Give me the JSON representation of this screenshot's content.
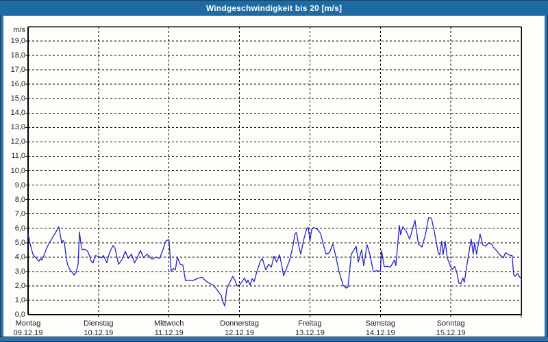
{
  "window": {
    "title": "Windgeschwindigkeit bis 20 [m/s]"
  },
  "colors": {
    "titlebar": "#1e6ba3",
    "titlebar_edge": "#15476f",
    "frame": "#2d74ad",
    "frame_edge": "#13395f",
    "title_text": "#ffffff",
    "plot_background": "#fdfdfa",
    "plot_border": "#000000",
    "gridline": "#000000",
    "line": "#2323c6",
    "label_text": "#1a1a24"
  },
  "chart_data": {
    "type": "line",
    "title": "Windgeschwindigkeit bis 20 [m/s]",
    "y_unit_label": "m/s",
    "ylabel": "Windgeschwindigkeit",
    "xlabel": "",
    "ylim": [
      0,
      20
    ],
    "ytick_step": 1.0,
    "ytick_labels": [
      "0,0",
      "1,0",
      "2,0",
      "3,0",
      "4,0",
      "5,0",
      "6,0",
      "7,0",
      "8,0",
      "9,0",
      "10,0",
      "11,0",
      "12,0",
      "13,0",
      "14,0",
      "15,0",
      "16,0",
      "17,0",
      "18,0",
      "19,0"
    ],
    "grid": "dashed, horizontal every 1 m/s and vertical at each day boundary",
    "legend_position": "none",
    "x_range_days": 7,
    "x_days": [
      {
        "name": "Montag",
        "date": "09.12.19"
      },
      {
        "name": "Dienstag",
        "date": "10.12.19"
      },
      {
        "name": "Mittwoch",
        "date": "11.12.19"
      },
      {
        "name": "Donnerstag",
        "date": "12.12.19"
      },
      {
        "name": "Freitag",
        "date": "13.12.19"
      },
      {
        "name": "Samstag",
        "date": "14.12.19"
      },
      {
        "name": "Sonntag",
        "date": "15.12.19"
      }
    ],
    "series": [
      {
        "name": "Windgeschwindigkeit",
        "unit": "m/s",
        "x_unit": "days since Montag 09.12.19 00:00",
        "points": [
          [
            0.0,
            5.6
          ],
          [
            0.03,
            4.9
          ],
          [
            0.068,
            4.2
          ],
          [
            0.1,
            4.0
          ],
          [
            0.136,
            3.8
          ],
          [
            0.155,
            3.7
          ],
          [
            0.175,
            3.9
          ],
          [
            0.195,
            3.8
          ],
          [
            0.225,
            4.1
          ],
          [
            0.262,
            4.6
          ],
          [
            0.292,
            4.9
          ],
          [
            0.34,
            5.3
          ],
          [
            0.39,
            5.7
          ],
          [
            0.437,
            6.1
          ],
          [
            0.455,
            5.6
          ],
          [
            0.476,
            5.0
          ],
          [
            0.495,
            5.15
          ],
          [
            0.515,
            5.0
          ],
          [
            0.545,
            3.8
          ],
          [
            0.56,
            3.5
          ],
          [
            0.583,
            3.2
          ],
          [
            0.615,
            3.0
          ],
          [
            0.632,
            2.9
          ],
          [
            0.651,
            2.75
          ],
          [
            0.68,
            2.9
          ],
          [
            0.71,
            3.5
          ],
          [
            0.729,
            5.75
          ],
          [
            0.751,
            4.9
          ],
          [
            0.768,
            4.5
          ],
          [
            0.8,
            4.55
          ],
          [
            0.846,
            4.4
          ],
          [
            0.87,
            4.1
          ],
          [
            0.894,
            3.7
          ],
          [
            0.923,
            3.6
          ],
          [
            0.952,
            4.1
          ],
          [
            1.0,
            4.05
          ],
          [
            1.04,
            3.95
          ],
          [
            1.07,
            4.1
          ],
          [
            1.118,
            3.6
          ],
          [
            1.155,
            4.3
          ],
          [
            1.205,
            4.8
          ],
          [
            1.235,
            4.6
          ],
          [
            1.283,
            3.5
          ],
          [
            1.33,
            3.8
          ],
          [
            1.38,
            4.4
          ],
          [
            1.42,
            3.9
          ],
          [
            1.468,
            4.2
          ],
          [
            1.51,
            3.6
          ],
          [
            1.545,
            3.9
          ],
          [
            1.594,
            4.45
          ],
          [
            1.64,
            3.95
          ],
          [
            1.69,
            4.2
          ],
          [
            1.76,
            3.85
          ],
          [
            1.818,
            4.0
          ],
          [
            1.866,
            3.9
          ],
          [
            1.914,
            4.5
          ],
          [
            1.945,
            5.0
          ],
          [
            1.964,
            5.15
          ],
          [
            2.0,
            5.2
          ],
          [
            2.03,
            3.0
          ],
          [
            2.06,
            3.2
          ],
          [
            2.09,
            3.1
          ],
          [
            2.118,
            4.0
          ],
          [
            2.158,
            3.5
          ],
          [
            2.195,
            3.45
          ],
          [
            2.235,
            2.35
          ],
          [
            2.285,
            2.4
          ],
          [
            2.33,
            2.35
          ],
          [
            2.38,
            2.45
          ],
          [
            2.43,
            2.55
          ],
          [
            2.47,
            2.6
          ],
          [
            2.52,
            2.35
          ],
          [
            2.565,
            2.2
          ],
          [
            2.625,
            2.05
          ],
          [
            2.664,
            1.85
          ],
          [
            2.692,
            1.65
          ],
          [
            2.74,
            1.35
          ],
          [
            2.77,
            0.85
          ],
          [
            2.79,
            0.6
          ],
          [
            2.82,
            1.8
          ],
          [
            2.858,
            2.2
          ],
          [
            2.905,
            2.65
          ],
          [
            2.935,
            2.4
          ],
          [
            2.965,
            2.0
          ],
          [
            3.0,
            2.05
          ],
          [
            3.038,
            2.3
          ],
          [
            3.072,
            2.55
          ],
          [
            3.101,
            2.2
          ],
          [
            3.121,
            2.4
          ],
          [
            3.15,
            2.05
          ],
          [
            3.179,
            2.5
          ],
          [
            3.208,
            2.3
          ],
          [
            3.247,
            3.0
          ],
          [
            3.296,
            3.7
          ],
          [
            3.325,
            3.9
          ],
          [
            3.374,
            3.1
          ],
          [
            3.413,
            3.5
          ],
          [
            3.452,
            3.3
          ],
          [
            3.49,
            4.05
          ],
          [
            3.529,
            3.65
          ],
          [
            3.568,
            4.15
          ],
          [
            3.597,
            3.5
          ],
          [
            3.626,
            2.7
          ],
          [
            3.675,
            3.3
          ],
          [
            3.713,
            3.8
          ],
          [
            3.752,
            4.6
          ],
          [
            3.791,
            5.65
          ],
          [
            3.81,
            5.7
          ],
          [
            3.84,
            4.8
          ],
          [
            3.869,
            4.2
          ],
          [
            3.917,
            5.3
          ],
          [
            3.956,
            6.0
          ],
          [
            3.976,
            6.05
          ],
          [
            4.0,
            5.1
          ],
          [
            4.025,
            5.9
          ],
          [
            4.053,
            6.05
          ],
          [
            4.102,
            5.95
          ],
          [
            4.15,
            5.65
          ],
          [
            4.189,
            4.9
          ],
          [
            4.228,
            4.2
          ],
          [
            4.277,
            4.3
          ],
          [
            4.325,
            4.9
          ],
          [
            4.374,
            3.9
          ],
          [
            4.413,
            3.0
          ],
          [
            4.471,
            2.05
          ],
          [
            4.51,
            1.85
          ],
          [
            4.539,
            1.9
          ],
          [
            4.588,
            4.2
          ],
          [
            4.626,
            4.5
          ],
          [
            4.656,
            4.75
          ],
          [
            4.686,
            3.65
          ],
          [
            4.734,
            4.5
          ],
          [
            4.763,
            3.4
          ],
          [
            4.812,
            4.85
          ],
          [
            4.85,
            4.2
          ],
          [
            4.899,
            3.0
          ],
          [
            4.948,
            3.05
          ],
          [
            5.0,
            3.0
          ],
          [
            5.017,
            4.45
          ],
          [
            5.055,
            3.35
          ],
          [
            5.104,
            3.35
          ],
          [
            5.143,
            3.3
          ],
          [
            5.201,
            3.8
          ],
          [
            5.22,
            3.4
          ],
          [
            5.269,
            6.2
          ],
          [
            5.288,
            5.55
          ],
          [
            5.318,
            6.1
          ],
          [
            5.366,
            5.8
          ],
          [
            5.415,
            5.25
          ],
          [
            5.454,
            5.9
          ],
          [
            5.491,
            6.55
          ],
          [
            5.54,
            4.9
          ],
          [
            5.589,
            4.7
          ],
          [
            5.637,
            5.5
          ],
          [
            5.686,
            6.75
          ],
          [
            5.725,
            6.7
          ],
          [
            5.764,
            5.8
          ],
          [
            5.822,
            4.3
          ],
          [
            5.842,
            4.15
          ],
          [
            5.871,
            5.1
          ],
          [
            5.89,
            4.15
          ],
          [
            5.92,
            5.1
          ],
          [
            5.949,
            3.95
          ],
          [
            6.0,
            3.3
          ],
          [
            6.026,
            3.15
          ],
          [
            6.055,
            3.35
          ],
          [
            6.084,
            2.95
          ],
          [
            6.114,
            2.2
          ],
          [
            6.143,
            2.15
          ],
          [
            6.172,
            2.55
          ],
          [
            6.191,
            2.25
          ],
          [
            6.24,
            3.8
          ],
          [
            6.288,
            5.25
          ],
          [
            6.318,
            4.2
          ],
          [
            6.337,
            5.0
          ],
          [
            6.366,
            4.2
          ],
          [
            6.415,
            5.6
          ],
          [
            6.454,
            4.85
          ],
          [
            6.493,
            4.75
          ],
          [
            6.531,
            4.95
          ],
          [
            6.58,
            4.9
          ],
          [
            6.599,
            4.7
          ],
          [
            6.648,
            4.45
          ],
          [
            6.686,
            4.2
          ],
          [
            6.745,
            3.95
          ],
          [
            6.774,
            4.3
          ],
          [
            6.823,
            4.15
          ],
          [
            6.871,
            4.1
          ],
          [
            6.891,
            2.8
          ],
          [
            6.91,
            2.65
          ],
          [
            6.949,
            2.85
          ],
          [
            6.978,
            2.6
          ],
          [
            7.0,
            2.55
          ]
        ]
      }
    ]
  }
}
